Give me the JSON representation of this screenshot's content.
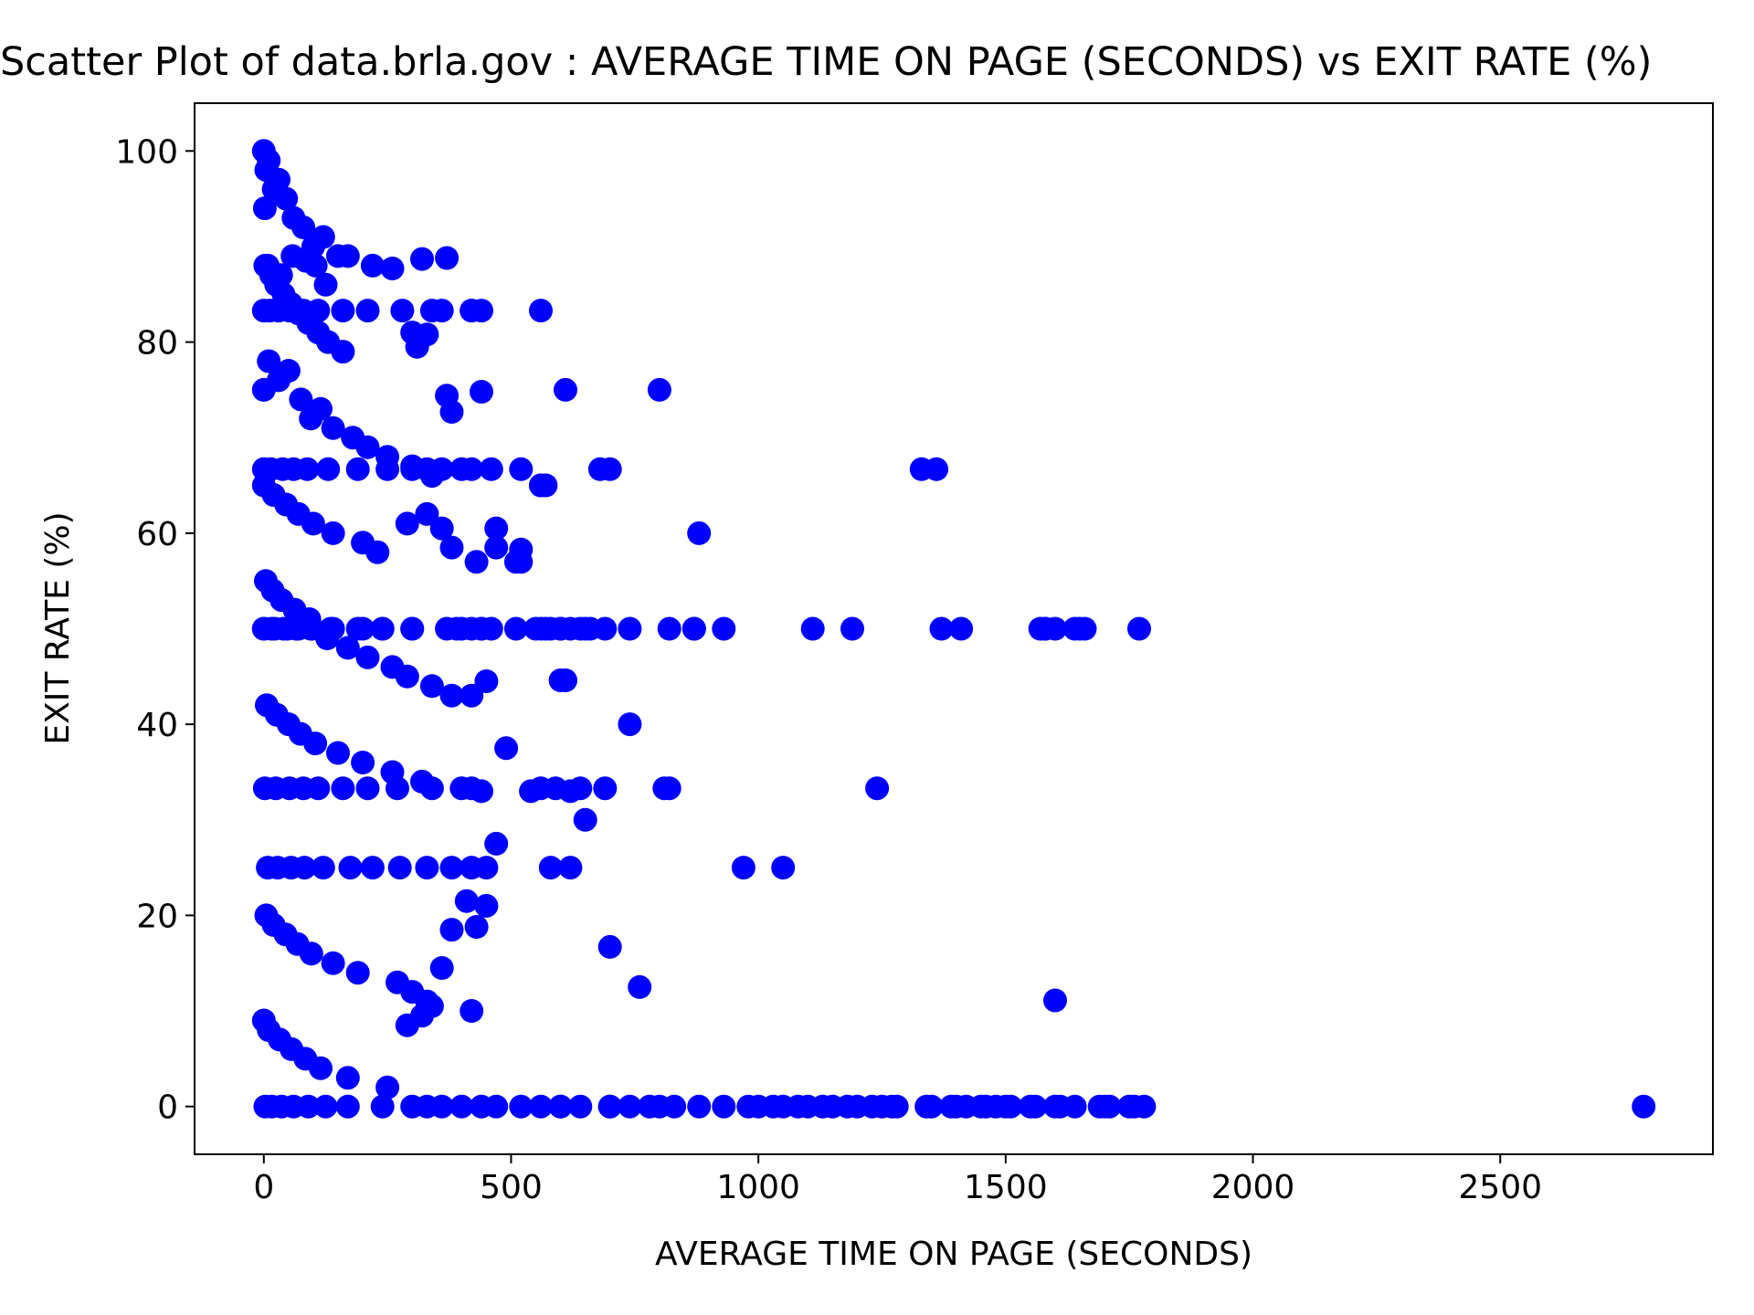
{
  "chart_data": {
    "type": "scatter",
    "title": "Scatter Plot of data.brla.gov : AVERAGE TIME ON PAGE (SECONDS) vs EXIT RATE (%)",
    "xlabel": "AVERAGE TIME ON PAGE (SECONDS)",
    "ylabel": "EXIT RATE (%)",
    "xlim": [
      -140,
      2930
    ],
    "ylim": [
      -5,
      105
    ],
    "xticks": [
      0,
      500,
      1000,
      1500,
      2000,
      2500
    ],
    "yticks": [
      0,
      20,
      40,
      60,
      80,
      100
    ],
    "grid": false,
    "legend": "none",
    "marker_color": "#0000ff",
    "series": [
      {
        "x": [
          0,
          5,
          10,
          20,
          30,
          45,
          60,
          80,
          100,
          120,
          150,
          2,
          8,
          15,
          25,
          40,
          55,
          70,
          90,
          110,
          130,
          160,
          0,
          10,
          30,
          50,
          75,
          95,
          115,
          140,
          180,
          210,
          250,
          300,
          340,
          0,
          20,
          45,
          70,
          100,
          140,
          200,
          230,
          290,
          330,
          360,
          380,
          430,
          470,
          520,
          560,
          600,
          700,
          800,
          1000,
          1050,
          1100,
          1150,
          1200,
          1250,
          1350,
          1400,
          1450,
          1500,
          1550,
          1600,
          1700,
          1750,
          1780,
          2790,
          3,
          12,
          35,
          58,
          85,
          105,
          125,
          170,
          220,
          260,
          320,
          370,
          420,
          440,
          0,
          15,
          40,
          65,
          95,
          135,
          200,
          240,
          300,
          400,
          440,
          460,
          510,
          550,
          570,
          600,
          620,
          650,
          690,
          740,
          4,
          18,
          36,
          62,
          92,
          128,
          170,
          210,
          260,
          290,
          340,
          380,
          420,
          450,
          0,
          22,
          48,
          70,
          98,
          140,
          190,
          240,
          300,
          370,
          390,
          420,
          440,
          560,
          580,
          600,
          640,
          660,
          820,
          870,
          930,
          1110,
          1190,
          1370,
          1410,
          1570,
          1580,
          1650,
          1770,
          6,
          26,
          50,
          74,
          104,
          150,
          200,
          260,
          320,
          440,
          540,
          620,
          650,
          2,
          24,
          52,
          80,
          110,
          160,
          210,
          270,
          340,
          400,
          420,
          590,
          610,
          640,
          690,
          740,
          820,
          1240,
          970,
          1050,
          8,
          28,
          55,
          82,
          120,
          175,
          220,
          275,
          330,
          380,
          420,
          450,
          470,
          700,
          760,
          1330,
          1600,
          0,
          14,
          38,
          60,
          88,
          130,
          190,
          250,
          300,
          330,
          360,
          400,
          420,
          460,
          490,
          520,
          560,
          570,
          600,
          620,
          880,
          5,
          20,
          44,
          68,
          96,
          140,
          190,
          270,
          300,
          330,
          420,
          700,
          800,
          1360,
          0,
          10,
          32,
          56,
          84,
          115,
          170,
          250,
          290,
          320,
          340,
          360,
          380,
          410,
          430,
          450,
          520,
          560,
          610,
          680,
          810,
          0,
          12,
          30,
          52,
          80,
          110,
          160,
          210,
          280,
          300,
          310,
          330,
          340,
          360,
          370,
          380,
          420,
          440,
          470,
          510,
          560,
          580,
          870,
          1580,
          1600,
          1640,
          1660,
          3,
          16,
          36,
          60,
          90,
          125,
          170,
          240,
          300,
          330,
          360,
          400,
          440,
          470,
          520,
          560,
          600,
          640,
          700,
          740,
          780,
          830,
          880,
          930,
          980,
          1030,
          1080,
          1130,
          1180,
          1230,
          1270,
          1280,
          1340,
          1390,
          1420,
          1460,
          1480,
          1510,
          1560,
          1610,
          1640,
          1690,
          1710,
          1760
        ],
        "y": [
          100,
          98,
          99,
          96,
          97,
          95,
          93,
          92,
          90,
          91,
          89,
          94,
          88,
          87,
          86,
          85,
          84,
          83,
          82,
          81,
          80,
          79,
          75,
          78,
          76,
          77,
          74,
          72,
          73,
          71,
          70,
          69,
          68,
          67,
          66,
          65,
          64,
          63,
          62,
          61,
          60,
          59,
          58,
          61,
          62,
          60.5,
          58.5,
          57,
          58.5,
          57,
          65,
          0,
          0,
          0,
          0,
          0,
          0,
          0,
          0,
          0,
          0,
          0,
          0,
          0,
          0,
          0,
          0,
          0,
          0,
          0,
          88,
          87.5,
          87,
          89,
          88.5,
          88,
          86,
          89,
          88,
          87.7,
          88.7,
          88.8,
          83.3,
          83.3,
          50,
          50,
          50,
          50,
          50,
          50,
          50,
          50,
          50,
          50,
          50,
          50,
          50,
          50,
          50,
          50,
          50,
          50,
          50,
          50,
          55,
          54,
          53,
          52,
          51,
          49,
          48,
          47,
          46,
          45,
          44,
          43,
          43,
          44.5,
          50,
          50,
          50,
          50,
          50,
          50,
          50,
          50,
          50,
          50,
          50,
          50,
          50,
          50,
          50,
          50,
          50,
          50,
          50,
          50,
          50,
          50,
          50,
          50,
          50,
          50,
          50,
          50,
          50,
          42,
          41,
          40,
          39,
          38,
          37,
          36,
          35,
          34,
          33,
          33,
          33,
          30,
          33.3,
          33.3,
          33.3,
          33.3,
          33.3,
          33.3,
          33.3,
          33.3,
          33.3,
          33.3,
          33.3,
          33.3,
          44.6,
          33.3,
          33.3,
          40,
          33.3,
          33.3,
          25,
          25,
          25,
          25,
          25,
          25,
          25,
          25,
          25,
          25,
          25,
          25,
          25,
          25,
          27.5,
          16.7,
          12.5,
          66.7,
          11.1,
          66.7,
          66.7,
          66.7,
          66.7,
          66.7,
          66.7,
          66.7,
          66.7,
          66.7,
          66.7,
          66.7,
          66.7,
          66.7,
          66.7,
          37.5,
          66.7,
          33.3,
          65,
          44.6,
          25,
          60,
          20,
          19,
          18,
          17,
          16,
          15,
          14,
          13,
          12,
          11,
          10,
          66.7,
          75,
          66.7,
          9,
          8,
          7,
          6,
          5,
          4,
          3,
          2,
          8.5,
          9.5,
          10.5,
          14.5,
          18.5,
          21.5,
          18.8,
          21,
          58.3,
          83.3,
          75,
          66.7,
          33.3,
          83.3,
          83.3,
          83.3,
          83.3,
          83.3,
          83.3,
          83.3,
          83.3,
          83.3,
          81,
          79.5,
          80.8,
          83.3,
          83.3,
          74.4,
          72.7,
          83.3,
          74.8,
          60.5,
          57,
          65,
          25,
          50,
          50,
          50,
          50,
          50,
          0,
          0,
          0,
          0,
          0,
          0,
          0,
          0,
          0,
          0,
          0,
          0,
          0,
          0,
          0,
          0,
          0,
          0,
          0,
          0,
          0,
          0,
          0,
          0,
          0,
          0,
          0,
          0,
          0,
          0,
          0,
          0,
          0,
          0,
          0,
          0,
          0,
          0,
          0,
          0,
          0,
          0,
          0,
          0
        ]
      }
    ]
  }
}
